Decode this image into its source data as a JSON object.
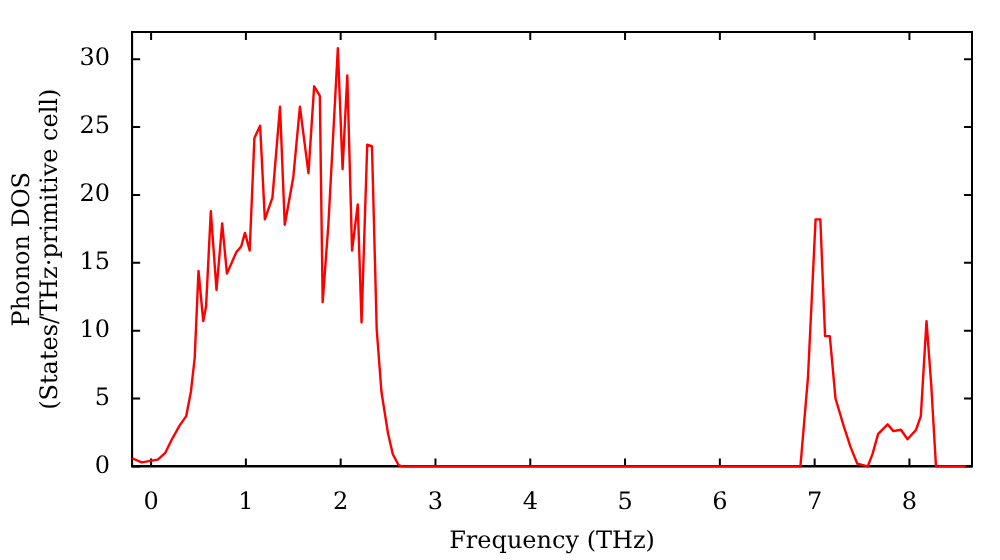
{
  "chart_data": {
    "type": "line",
    "xlabel": "Frequency (THz)",
    "ylabel": "Phonon DOS\n(States/THz·primitive cell)",
    "xlim": [
      -0.2,
      8.66
    ],
    "ylim": [
      0,
      32
    ],
    "xticks": [
      0,
      1,
      2,
      3,
      4,
      5,
      6,
      7,
      8
    ],
    "yticks": [
      0,
      5,
      10,
      15,
      20,
      25,
      30
    ],
    "legend": false,
    "marker": "none",
    "line_style": "solid",
    "x": [
      -0.2,
      -0.1,
      0.07,
      0.15,
      0.22,
      0.3,
      0.37,
      0.42,
      0.46,
      0.5,
      0.55,
      0.58,
      0.63,
      0.69,
      0.75,
      0.8,
      0.9,
      0.95,
      0.99,
      1.04,
      1.09,
      1.15,
      1.2,
      1.28,
      1.36,
      1.41,
      1.5,
      1.57,
      1.66,
      1.72,
      1.78,
      1.81,
      1.87,
      1.97,
      2.02,
      2.07,
      2.12,
      2.18,
      2.22,
      2.28,
      2.33,
      2.38,
      2.43,
      2.5,
      2.55,
      2.61,
      2.65,
      6.85,
      6.93,
      7.01,
      7.06,
      7.11,
      7.16,
      7.22,
      7.31,
      7.38,
      7.45,
      7.56,
      7.61,
      7.67,
      7.77,
      7.83,
      7.91,
      7.98,
      8.07,
      8.12,
      8.18,
      8.23,
      8.28,
      8.6
    ],
    "series": [
      {
        "color": "#ff0000",
        "values": [
          0.6,
          0.3,
          0.5,
          1,
          2,
          3,
          3.7,
          5.5,
          8,
          14.4,
          10.7,
          11.8,
          18.8,
          13,
          17.9,
          14.2,
          15.8,
          16.2,
          17.2,
          15.9,
          24.2,
          25.1,
          18.2,
          19.8,
          26.5,
          17.8,
          21.3,
          26.5,
          21.6,
          28,
          27.3,
          12.1,
          17.8,
          30.8,
          21.9,
          28.8,
          15.9,
          19.3,
          10.6,
          23.7,
          23.6,
          10.1,
          5.5,
          2.4,
          0.9,
          0.1,
          0,
          0,
          6.6,
          18.2,
          18.2,
          9.6,
          9.6,
          5,
          2.9,
          1.4,
          0.2,
          0,
          0.9,
          2.4,
          3.1,
          2.6,
          2.7,
          2,
          2.7,
          3.7,
          10.7,
          6,
          0,
          0
        ]
      }
    ]
  }
}
